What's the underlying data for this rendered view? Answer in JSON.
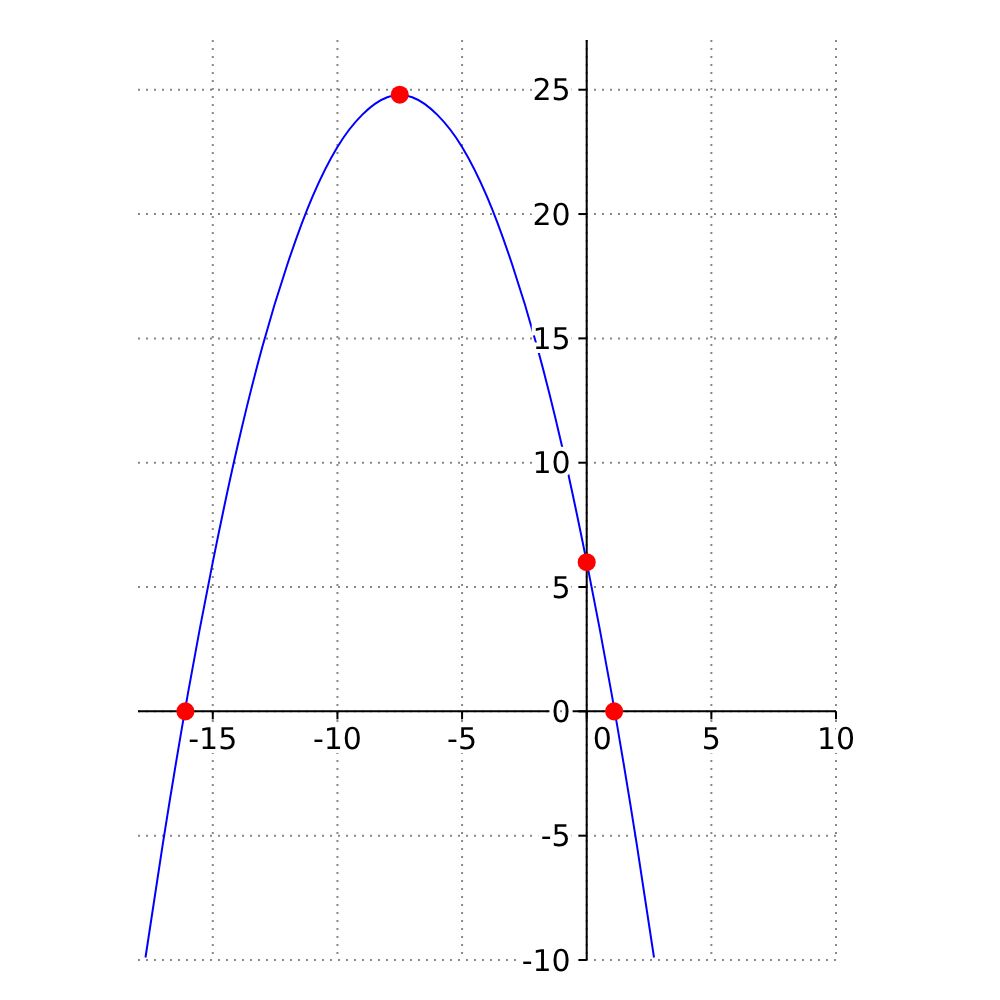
{
  "chart_data": {
    "type": "line",
    "xlim": [
      -18,
      10
    ],
    "ylim": [
      -10,
      27
    ],
    "xticks": [
      -15,
      -10,
      -5,
      0,
      5,
      10
    ],
    "yticks": [
      -10,
      -5,
      0,
      5,
      10,
      15,
      20,
      25
    ],
    "grid": true,
    "marker": "none",
    "line_style": "solid",
    "series": [
      {
        "color": "#0000ff",
        "x": [
          -17.7,
          -17,
          -16,
          -15,
          -14,
          -13,
          -12,
          -11,
          -10,
          -9,
          -8,
          -7.5,
          -7,
          -6,
          -5,
          -4,
          -3,
          -2,
          -1,
          0,
          1,
          2,
          2.7
        ],
        "values": [
          -9.9,
          -5.3,
          0.7,
          6,
          10.7,
          14.7,
          18,
          20.7,
          22.7,
          24,
          24.7,
          24.8,
          24.7,
          24,
          22.7,
          20.7,
          18,
          14.7,
          10.7,
          6,
          0.7,
          -5.3,
          -9.9
        ]
      },
      {
        "type": "scatter",
        "color": "#ff0000",
        "marker": "circle",
        "x": [
          -16.1,
          -7.5,
          0,
          1.1
        ],
        "values": [
          0,
          24.8,
          6,
          0
        ]
      }
    ]
  }
}
